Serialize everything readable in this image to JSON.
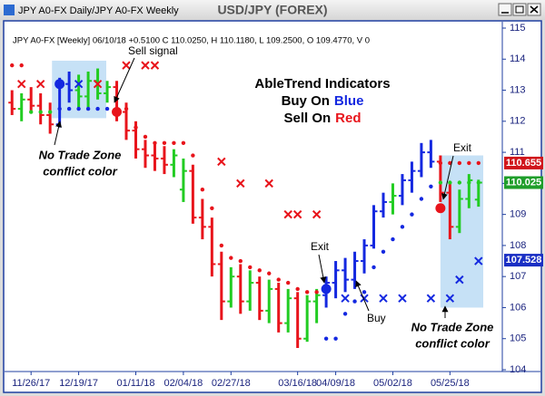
{
  "window": {
    "title": "JPY A0-FX Daily/JPY A0-FX Weekly"
  },
  "chart_data": {
    "type": "ohlc",
    "title": "USD/JPY (FOREX)",
    "info": "JPY A0-FX [Weekly] 06/10/18 +0.5100 C 110.0250, H 110.1180, L 109.2500, O 109.4770, V 0",
    "annotations": {
      "sell_signal": "Sell signal",
      "no_trade_left_1": "No Trade Zone",
      "no_trade_left_2": "conflict color",
      "heading": "AbleTrend Indicators",
      "buy_on": "Buy On",
      "blue": "Blue",
      "sell_on": "Sell On",
      "red": "Red",
      "exit_1": "Exit",
      "buy": "Buy",
      "exit_2": "Exit",
      "no_trade_right_1": "No Trade Zone",
      "no_trade_right_2": "conflict color"
    },
    "xlim": [
      -0.5,
      51.5
    ],
    "xticks": [
      {
        "value": 2,
        "label": "11/26/17"
      },
      {
        "value": 7,
        "label": "12/19/17"
      },
      {
        "value": 13,
        "label": "01/11/18"
      },
      {
        "value": 18,
        "label": "02/04/18"
      },
      {
        "value": 23,
        "label": "02/27/18"
      },
      {
        "value": 30,
        "label": "03/16/18"
      },
      {
        "value": 34,
        "label": "04/09/18"
      },
      {
        "value": 40,
        "label": "05/02/18"
      },
      {
        "value": 46,
        "label": "05/25/18"
      }
    ],
    "ylim": [
      104,
      115
    ],
    "yticks": [
      104,
      105,
      106,
      107,
      108,
      109,
      110,
      111,
      112,
      113,
      114,
      115
    ],
    "open": [
      112.6,
      112.4,
      112.7,
      112.5,
      112.2,
      111.9,
      113.2,
      113.0,
      112.8,
      113.3,
      112.9,
      113.1,
      112.3,
      111.7,
      111.1,
      110.9,
      110.8,
      110.6,
      109.8,
      110.4,
      108.9,
      108.6,
      107.4,
      106.2,
      107.0,
      106.2,
      106.8,
      105.9,
      106.6,
      105.5,
      106.3,
      105.0,
      106.2,
      106.4,
      106.8,
      107.2,
      106.9,
      107.5,
      108.0,
      109.1,
      109.4,
      109.6,
      110.1,
      110.4,
      111.0,
      110.7,
      109.7,
      108.6,
      109.5,
      109.477
    ],
    "high": [
      113.0,
      112.9,
      113.1,
      112.9,
      112.6,
      113.4,
      113.6,
      113.5,
      113.6,
      113.7,
      113.3,
      113.3,
      112.6,
      112.0,
      111.4,
      111.3,
      111.2,
      111.1,
      110.8,
      110.6,
      109.5,
      108.9,
      107.8,
      107.3,
      107.4,
      107.2,
      107.0,
      106.9,
      106.8,
      106.6,
      106.5,
      106.4,
      106.6,
      107.0,
      107.5,
      107.6,
      107.8,
      108.2,
      109.3,
      109.7,
      110.0,
      110.3,
      110.7,
      111.3,
      111.4,
      110.9,
      110.0,
      109.8,
      110.3,
      110.118
    ],
    "low": [
      112.2,
      112.0,
      112.3,
      111.9,
      111.6,
      111.8,
      112.6,
      112.4,
      112.4,
      112.7,
      112.6,
      112.0,
      111.4,
      110.8,
      110.5,
      110.4,
      110.3,
      110.2,
      109.4,
      108.7,
      108.2,
      107.0,
      105.6,
      106.0,
      105.8,
      105.9,
      105.6,
      105.5,
      105.2,
      105.2,
      104.7,
      104.9,
      105.5,
      106.0,
      106.3,
      106.5,
      106.6,
      107.1,
      107.9,
      108.9,
      109.0,
      109.3,
      109.7,
      110.2,
      110.5,
      109.4,
      108.2,
      108.4,
      109.2,
      109.25
    ],
    "close": [
      112.4,
      112.7,
      112.5,
      112.2,
      111.9,
      113.2,
      113.0,
      112.8,
      113.3,
      112.9,
      113.1,
      112.3,
      111.7,
      111.1,
      110.9,
      110.8,
      110.6,
      110.9,
      110.4,
      108.9,
      108.6,
      107.4,
      106.2,
      107.0,
      106.2,
      106.8,
      105.9,
      106.6,
      105.5,
      106.3,
      105.0,
      106.2,
      106.4,
      106.8,
      107.2,
      106.9,
      107.5,
      108.0,
      109.1,
      109.4,
      109.6,
      110.1,
      110.4,
      111.0,
      110.7,
      109.7,
      108.6,
      109.5,
      110.1,
      110.025
    ],
    "bar_colors": [
      "#e8141b",
      "#22cc22",
      "#e8141b",
      "#e8141b",
      "#e8141b",
      "#1428e0",
      "#1428e0",
      "#22cc22",
      "#22cc22",
      "#22cc22",
      "#22cc22",
      "#e8141b",
      "#e8141b",
      "#e8141b",
      "#e8141b",
      "#e8141b",
      "#e8141b",
      "#22cc22",
      "#22cc22",
      "#e8141b",
      "#e8141b",
      "#e8141b",
      "#e8141b",
      "#22cc22",
      "#e8141b",
      "#22cc22",
      "#e8141b",
      "#22cc22",
      "#e8141b",
      "#22cc22",
      "#e8141b",
      "#22cc22",
      "#22cc22",
      "#1428e0",
      "#1428e0",
      "#1428e0",
      "#1428e0",
      "#1428e0",
      "#1428e0",
      "#1428e0",
      "#22cc22",
      "#1428e0",
      "#1428e0",
      "#1428e0",
      "#1428e0",
      "#e8141b",
      "#e8141b",
      "#22cc22",
      "#22cc22",
      "#22cc22"
    ],
    "zones": [
      {
        "color": "#bcdcf4",
        "x": [
          4.2,
          9.9
        ],
        "y": [
          112.1,
          113.95
        ]
      },
      {
        "color": "#bcdcf4",
        "x": [
          45.0,
          49.5
        ],
        "y": [
          106.0,
          110.9
        ]
      }
    ],
    "markers": [
      {
        "shape": "x",
        "color": "#e8141b",
        "points": [
          [
            1,
            113.2
          ],
          [
            3,
            113.2
          ],
          [
            9,
            113.2
          ],
          [
            12,
            113.8
          ],
          [
            14,
            113.8
          ],
          [
            15,
            113.8
          ],
          [
            22,
            110.7
          ],
          [
            24,
            110.0
          ],
          [
            27,
            110.0
          ],
          [
            29,
            109.0
          ],
          [
            30,
            109.0
          ],
          [
            32,
            109.0
          ]
        ]
      },
      {
        "shape": "x",
        "color": "#1428e0",
        "points": [
          [
            7,
            113.2
          ],
          [
            35,
            106.3
          ],
          [
            37,
            106.3
          ],
          [
            39,
            106.3
          ],
          [
            41,
            106.3
          ],
          [
            44,
            106.3
          ],
          [
            46,
            106.3
          ],
          [
            47,
            106.9
          ],
          [
            49,
            107.5
          ]
        ]
      },
      {
        "shape": "dot",
        "color": "#e8141b",
        "points": [
          [
            0,
            113.8
          ],
          [
            1,
            113.8
          ],
          [
            12,
            112.4
          ],
          [
            13,
            111.8
          ],
          [
            14,
            111.5
          ],
          [
            15,
            111.3
          ],
          [
            16,
            111.3
          ],
          [
            17,
            111.3
          ],
          [
            18,
            111.3
          ],
          [
            19,
            110.9
          ],
          [
            20,
            109.8
          ],
          [
            21,
            109.2
          ],
          [
            22,
            108.0
          ],
          [
            23,
            107.6
          ],
          [
            24,
            107.5
          ],
          [
            25,
            107.3
          ],
          [
            26,
            107.2
          ],
          [
            27,
            107.1
          ],
          [
            28,
            106.9
          ],
          [
            29,
            106.8
          ],
          [
            30,
            106.6
          ],
          [
            31,
            106.5
          ],
          [
            32,
            106.5
          ],
          [
            45,
            110.655
          ],
          [
            46,
            110.655
          ],
          [
            47,
            110.655
          ],
          [
            48,
            110.655
          ],
          [
            49,
            110.655
          ]
        ]
      },
      {
        "shape": "dot",
        "color": "#1428e0",
        "points": [
          [
            5,
            112.4
          ],
          [
            6,
            112.4
          ],
          [
            7,
            112.4
          ],
          [
            8,
            112.4
          ],
          [
            9,
            112.4
          ],
          [
            10,
            112.4
          ],
          [
            33,
            105.0
          ],
          [
            34,
            105.0
          ],
          [
            35,
            105.8
          ],
          [
            36,
            106.2
          ],
          [
            37,
            106.5
          ],
          [
            38,
            107.3
          ],
          [
            39,
            107.8
          ],
          [
            40,
            108.2
          ],
          [
            41,
            108.6
          ],
          [
            42,
            109.0
          ],
          [
            43,
            109.5
          ],
          [
            44,
            109.9
          ]
        ]
      },
      {
        "shape": "dot",
        "color": "#22cc22",
        "points": [
          [
            2,
            112.3
          ],
          [
            3,
            112.3
          ],
          [
            4,
            112.3
          ],
          [
            45,
            110.025
          ],
          [
            46,
            110.025
          ],
          [
            47,
            110.025
          ],
          [
            48,
            110.025
          ],
          [
            49,
            110.025
          ]
        ]
      },
      {
        "shape": "signal",
        "color": "#1428e0",
        "points": [
          [
            5,
            113.2
          ],
          [
            33,
            106.6
          ]
        ]
      },
      {
        "shape": "signal",
        "color": "#e8141b",
        "points": [
          [
            11,
            112.3
          ],
          [
            45,
            109.2
          ]
        ]
      }
    ],
    "price_labels": [
      {
        "value": 110.655,
        "color": "#d0151b"
      },
      {
        "value": 110.025,
        "color": "#1f9e2a"
      },
      {
        "value": 107.528,
        "color": "#1a2fc4"
      }
    ]
  }
}
